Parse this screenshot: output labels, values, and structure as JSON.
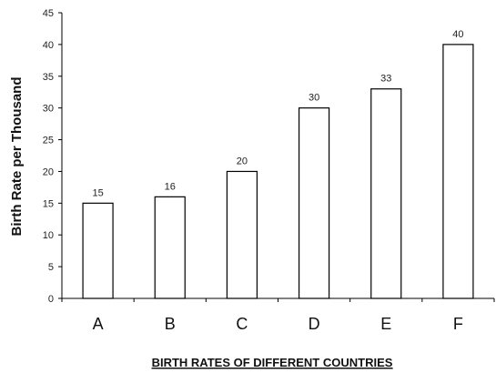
{
  "chart_data": {
    "type": "bar",
    "categories": [
      "A",
      "B",
      "C",
      "D",
      "E",
      "F"
    ],
    "values": [
      15,
      16,
      20,
      30,
      33,
      40
    ],
    "data_labels": [
      "15",
      "16",
      "20",
      "30",
      "33",
      "40"
    ],
    "xlabel": "BIRTH RATES OF DIFFERENT COUNTRIES",
    "ylabel": "Birth Rate per Thousand",
    "ylim": [
      0,
      45
    ],
    "yticks": [
      0,
      5,
      10,
      15,
      20,
      25,
      30,
      35,
      40,
      45
    ],
    "ytick_labels": [
      "0",
      "5",
      "10",
      "15",
      "20",
      "25",
      "30",
      "35",
      "40",
      "45"
    ],
    "grid": false,
    "legend": "none",
    "colors": {
      "bar_fill": "#ffffff",
      "bar_stroke": "#000000",
      "axis": "#000000"
    }
  }
}
